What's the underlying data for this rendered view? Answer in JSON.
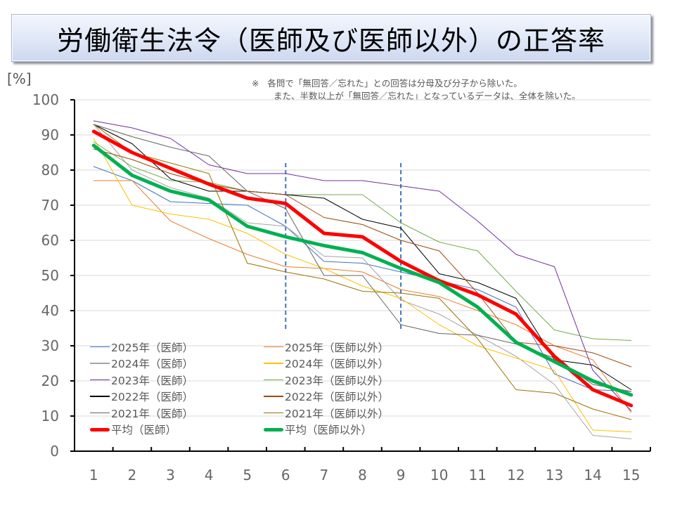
{
  "title": "労働衛生法令（医師及び医師以外）の正答率",
  "unit_label": "[%]",
  "note": {
    "mark": "※",
    "line1": "各問で「無回答／忘れた」との回答は分母及び分子から除いた。",
    "line2": "また、半数以上が「無回答／忘れた」となっているデータは、全体を除いた。"
  },
  "chart_data": {
    "type": "line",
    "title": "労働衛生法令（医師及び医師以外）の正答率",
    "xlabel": "",
    "ylabel": "[%]",
    "ylim": [
      0,
      100
    ],
    "yticks": [
      "0",
      "10",
      "20",
      "30",
      "40",
      "50",
      "60",
      "70",
      "80",
      "90",
      "100"
    ],
    "categories": [
      "1",
      "2",
      "3",
      "4",
      "5",
      "6",
      "7",
      "8",
      "9",
      "10",
      "11",
      "12",
      "13",
      "14",
      "15"
    ],
    "grid": true,
    "legend_position": "bottom-left",
    "reference_lines_between": [
      5.5,
      8.5
    ],
    "reference_line_color": "#4472c4",
    "series": [
      {
        "name": "2025年（医師）",
        "color": "#4472c4",
        "width": 1,
        "values": [
          81,
          77,
          71,
          70.5,
          70,
          64,
          54,
          53.5,
          51,
          48.5,
          46,
          41,
          22,
          17.5,
          17
        ]
      },
      {
        "name": "2025年（医師以外）",
        "color": "#ed7d31",
        "width": 1,
        "values": [
          77,
          77,
          65.5,
          60.5,
          56,
          52.5,
          52,
          51,
          46,
          44,
          40,
          36,
          30,
          26,
          11
        ]
      },
      {
        "name": "2024年（医師）",
        "color": "#a5a5a5",
        "width": 1,
        "values": [
          93,
          80,
          75,
          72,
          65,
          64,
          55.5,
          55,
          43,
          39,
          33,
          27,
          19,
          4.5,
          3.5
        ]
      },
      {
        "name": "2024年（医師以外）",
        "color": "#ffc000",
        "width": 1,
        "values": [
          89,
          70,
          67.5,
          66,
          62,
          56,
          52,
          47,
          43.5,
          36,
          30,
          26.5,
          23,
          6,
          5.5
        ]
      },
      {
        "name": "2023年（医師）",
        "color": "#7030a0",
        "width": 1,
        "values": [
          94,
          92,
          89,
          81.5,
          79,
          79,
          77,
          77,
          75.5,
          74,
          65.5,
          56,
          52.5,
          23,
          11.5
        ]
      },
      {
        "name": "2023年（医師以外）",
        "color": "#70ad47",
        "width": 1,
        "values": [
          88,
          81,
          77,
          76.5,
          74,
          73,
          73,
          73,
          65,
          59.5,
          57,
          45.5,
          34.5,
          32,
          31.5
        ]
      },
      {
        "name": "2022年（医師）",
        "color": "#000000",
        "width": 1,
        "values": [
          93,
          87.5,
          77.5,
          74,
          74,
          73,
          72,
          66,
          63.5,
          50.5,
          48,
          43.5,
          26,
          24.5,
          17.5
        ]
      },
      {
        "name": "2022年（医師以外）",
        "color": "#9e480e",
        "width": 1,
        "values": [
          86,
          83,
          79,
          76,
          74,
          73,
          66.5,
          64.5,
          60,
          57,
          45,
          31,
          30,
          28,
          24
        ]
      },
      {
        "name": "2021年（医師）",
        "color": "#636363",
        "width": 1,
        "values": [
          93,
          89.5,
          86.5,
          84,
          74,
          69,
          50,
          50,
          36,
          33.5,
          33,
          30.5,
          26.5,
          19,
          17
        ]
      },
      {
        "name": "2021年（医師以外）",
        "color": "#997300",
        "width": 1,
        "values": [
          93,
          85,
          82,
          79,
          53.5,
          51,
          49,
          45.5,
          45,
          43.5,
          32,
          17.5,
          16.5,
          12,
          9
        ]
      },
      {
        "name": "平均（医師）",
        "color": "#ff0000",
        "width": 5,
        "values": [
          91,
          85,
          80.5,
          76,
          72,
          70.5,
          62,
          61,
          54,
          48.5,
          44.5,
          39,
          27,
          17.5,
          13
        ]
      },
      {
        "name": "平均（医師以外）",
        "color": "#00b050",
        "width": 5,
        "values": [
          87,
          78.5,
          74,
          71.5,
          64,
          61,
          58.5,
          56.5,
          52,
          48,
          41,
          31,
          25.5,
          20,
          16
        ]
      }
    ]
  },
  "legend": {
    "items": [
      {
        "label": "2025年（医師）",
        "color": "#4472c4",
        "thick": false
      },
      {
        "label": "2024年（医師）",
        "color": "#a5a5a5",
        "thick": false
      },
      {
        "label": "2023年（医師）",
        "color": "#7030a0",
        "thick": false
      },
      {
        "label": "2022年（医師）",
        "color": "#000000",
        "thick": false
      },
      {
        "label": "2021年（医師）",
        "color": "#636363",
        "thick": false
      },
      {
        "label": "平均（医師）",
        "color": "#ff0000",
        "thick": true
      },
      {
        "label": "2025年（医師以外）",
        "color": "#ed7d31",
        "thick": false
      },
      {
        "label": "2024年（医師以外）",
        "color": "#ffc000",
        "thick": false
      },
      {
        "label": "2023年（医師以外）",
        "color": "#70ad47",
        "thick": false
      },
      {
        "label": "2022年（医師以外）",
        "color": "#9e480e",
        "thick": false
      },
      {
        "label": "2021年（医師以外）",
        "color": "#997300",
        "thick": false
      },
      {
        "label": "平均（医師以外）",
        "color": "#00b050",
        "thick": true
      }
    ]
  }
}
